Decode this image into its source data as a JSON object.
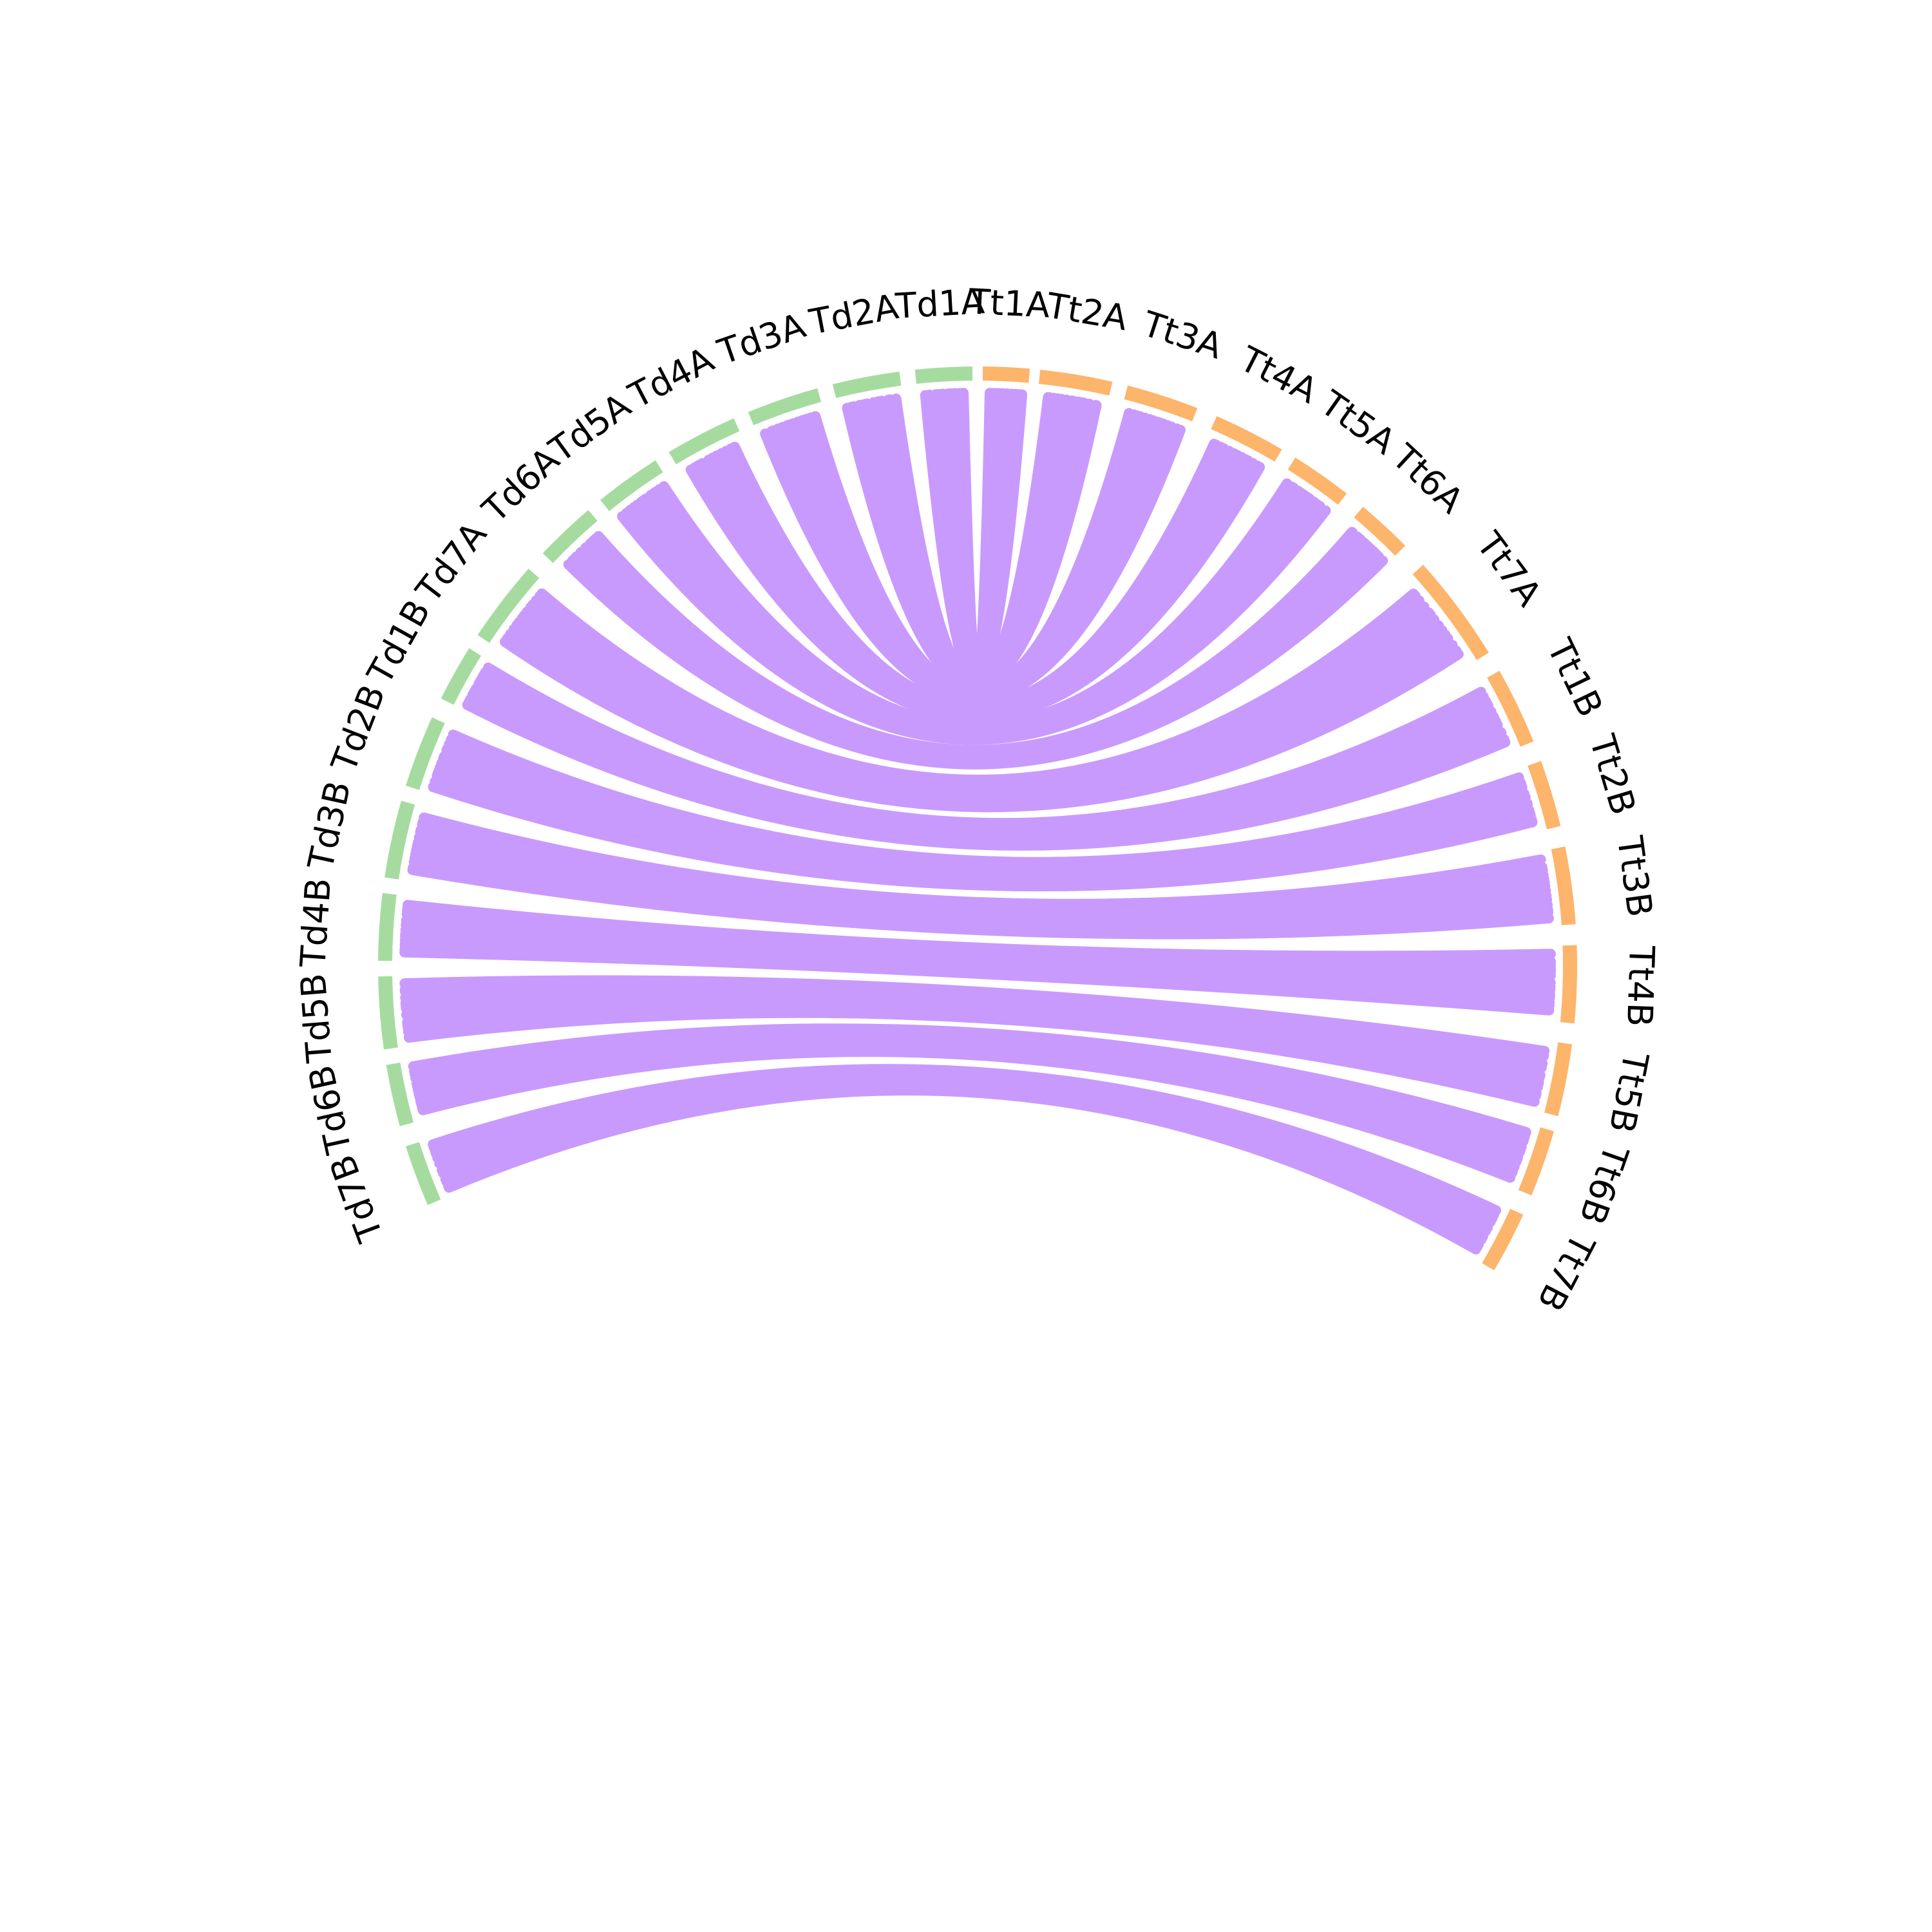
{
  "colors": {
    "groupA": "#a6dba0",
    "groupB": "#fdb46b",
    "links": "#c99afd",
    "label": "#000000"
  },
  "segments": [
    {
      "id": "Td1A",
      "label": "Td1A",
      "group": "A"
    },
    {
      "id": "Td2A",
      "label": "Td2A",
      "group": "A"
    },
    {
      "id": "Td3A",
      "label": "Td3A",
      "group": "A"
    },
    {
      "id": "Td4A",
      "label": "Td4A",
      "group": "A"
    },
    {
      "id": "Td5A",
      "label": "Td5A",
      "group": "A"
    },
    {
      "id": "Td6A",
      "label": "Td6A",
      "group": "A"
    },
    {
      "id": "Td7A",
      "label": "Td7A",
      "group": "A"
    },
    {
      "id": "Td1B",
      "label": "Td1B",
      "group": "A"
    },
    {
      "id": "Td2B",
      "label": "Td2B",
      "group": "A"
    },
    {
      "id": "Td3B",
      "label": "Td3B",
      "group": "A"
    },
    {
      "id": "Td4B",
      "label": "Td4B",
      "group": "A"
    },
    {
      "id": "Td5B",
      "label": "Td5B",
      "group": "A"
    },
    {
      "id": "Td6B",
      "label": "Td6B",
      "group": "A"
    },
    {
      "id": "Td7B",
      "label": "Td7B",
      "group": "A"
    },
    {
      "id": "Tt1A",
      "label": "Tt1A",
      "group": "B"
    },
    {
      "id": "Tt2A",
      "label": "Tt2A",
      "group": "B"
    },
    {
      "id": "Tt3A",
      "label": "Tt3A",
      "group": "B"
    },
    {
      "id": "Tt4A",
      "label": "Tt4A",
      "group": "B"
    },
    {
      "id": "Tt5A",
      "label": "Tt5A",
      "group": "B"
    },
    {
      "id": "Tt6A",
      "label": "Tt6A",
      "group": "B"
    },
    {
      "id": "Tt7A",
      "label": "Tt7A",
      "group": "B"
    },
    {
      "id": "Tt1B",
      "label": "Tt1B",
      "group": "B"
    },
    {
      "id": "Tt2B",
      "label": "Tt2B",
      "group": "B"
    },
    {
      "id": "Tt3B",
      "label": "Tt3B",
      "group": "B"
    },
    {
      "id": "Tt4B",
      "label": "Tt4B",
      "group": "B"
    },
    {
      "id": "Tt5B",
      "label": "Tt5B",
      "group": "B"
    },
    {
      "id": "Tt6B",
      "label": "Tt6B",
      "group": "B"
    },
    {
      "id": "Tt7B",
      "label": "Tt7B",
      "group": "B"
    }
  ],
  "links": [
    {
      "from": "Td1A",
      "to": "Tt1A"
    },
    {
      "from": "Td2A",
      "to": "Tt2A"
    },
    {
      "from": "Td3A",
      "to": "Tt3A"
    },
    {
      "from": "Td4A",
      "to": "Tt4A"
    },
    {
      "from": "Td5A",
      "to": "Tt5A"
    },
    {
      "from": "Td6A",
      "to": "Tt6A"
    },
    {
      "from": "Td7A",
      "to": "Tt7A"
    },
    {
      "from": "Td1B",
      "to": "Tt1B"
    },
    {
      "from": "Td2B",
      "to": "Tt2B"
    },
    {
      "from": "Td3B",
      "to": "Tt3B"
    },
    {
      "from": "Td4B",
      "to": "Tt4B"
    },
    {
      "from": "Td5B",
      "to": "Tt5B"
    },
    {
      "from": "Td6B",
      "to": "Tt6B"
    },
    {
      "from": "Td7B",
      "to": "Tt7B"
    }
  ]
}
